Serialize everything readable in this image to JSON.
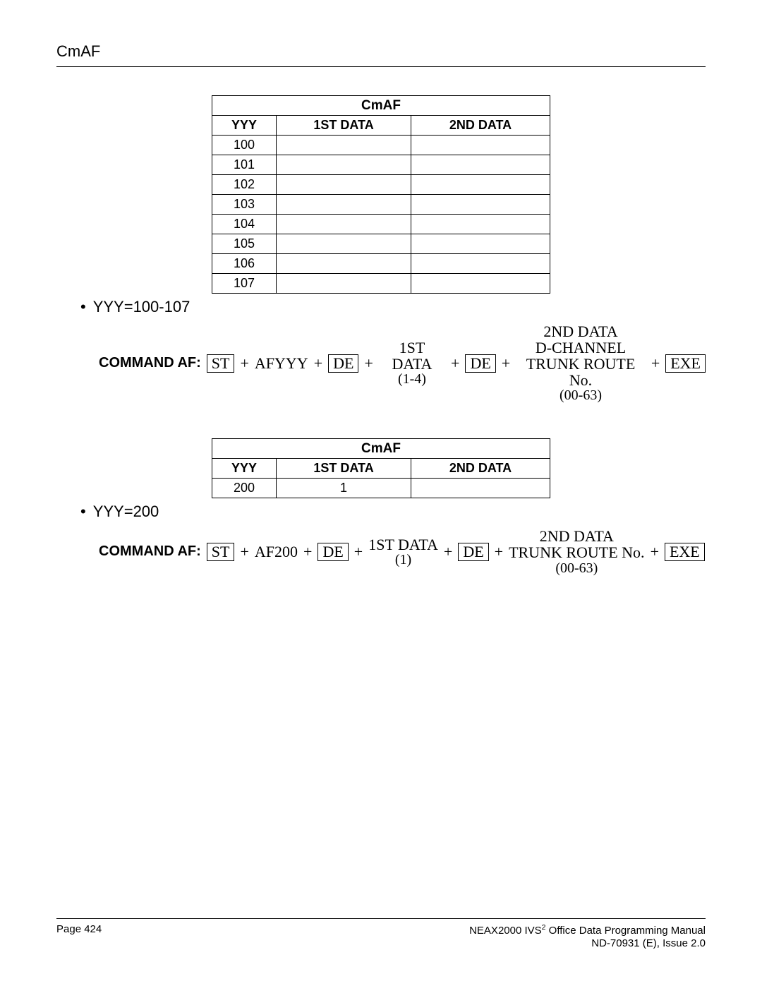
{
  "header": {
    "title": "CmAF"
  },
  "table1": {
    "title": "CmAF",
    "columns": [
      "YYY",
      "1ST DATA",
      "2ND DATA"
    ],
    "rows": [
      [
        "100",
        "",
        ""
      ],
      [
        "101",
        "",
        ""
      ],
      [
        "102",
        "",
        ""
      ],
      [
        "103",
        "",
        ""
      ],
      [
        "104",
        "",
        ""
      ],
      [
        "105",
        "",
        ""
      ],
      [
        "106",
        "",
        ""
      ],
      [
        "107",
        "",
        ""
      ]
    ]
  },
  "bullet1": "YYY=100-107",
  "cmd1": {
    "label": "COMMAND AF:",
    "st": "ST",
    "afyyy": "AFYYY",
    "de": "DE",
    "first_data_top": "1ST DATA",
    "first_data_sub": "(1-4)",
    "second_data_l1": "2ND DATA",
    "second_data_l2": "D-CHANNEL",
    "second_data_l3": "TRUNK ROUTE No.",
    "second_data_l4": "(00-63)",
    "exe": "EXE"
  },
  "table2": {
    "title": "CmAF",
    "columns": [
      "YYY",
      "1ST DATA",
      "2ND DATA"
    ],
    "rows": [
      [
        "200",
        "1",
        ""
      ]
    ]
  },
  "bullet2": "YYY=200",
  "cmd2": {
    "label": "COMMAND AF:",
    "st": "ST",
    "af200": "AF200",
    "de": "DE",
    "first_data_top": "1ST DATA",
    "first_data_sub": "(1)",
    "second_data_l1": "2ND DATA",
    "second_data_l2": "TRUNK ROUTE No.",
    "second_data_l3": "(00-63)",
    "exe": "EXE"
  },
  "footer": {
    "page": "Page 424",
    "manual_pre": "NEAX2000 IVS",
    "manual_sup": "2",
    "manual_post": " Office Data Programming Manual",
    "issue": "ND-70931 (E), Issue 2.0"
  }
}
